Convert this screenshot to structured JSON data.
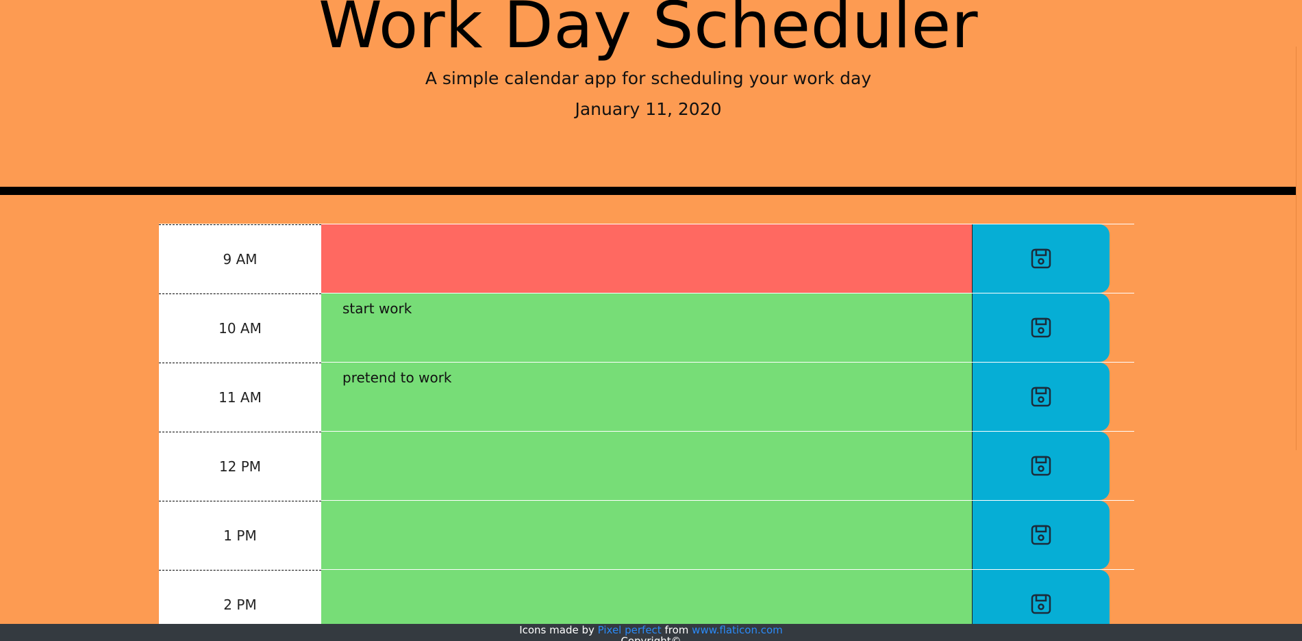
{
  "header": {
    "title": "Work Day Scheduler",
    "subtitle": "A simple calendar app for scheduling your work day",
    "date": "January 11, 2020"
  },
  "timeblocks": [
    {
      "hour": "9 AM",
      "text": "",
      "state": "past"
    },
    {
      "hour": "10 AM",
      "text": "start work",
      "state": "future"
    },
    {
      "hour": "11 AM",
      "text": "pretend to work",
      "state": "future"
    },
    {
      "hour": "12 PM",
      "text": "",
      "state": "future"
    },
    {
      "hour": "1 PM",
      "text": "",
      "state": "future"
    },
    {
      "hour": "2 PM",
      "text": "",
      "state": "future"
    }
  ],
  "save_icon": "floppy-disk-icon",
  "colors": {
    "background": "#fd9b52",
    "past": "#ff6961",
    "future": "#77dd77",
    "save_button": "#06aed5",
    "footer": "#343a40",
    "link": "#2b8af7"
  },
  "footer": {
    "prefix": "Icons made by",
    "author_link": "Pixel perfect",
    "middle": "from",
    "site_link": "www.flaticon.com",
    "copyright": "Copyright©"
  }
}
